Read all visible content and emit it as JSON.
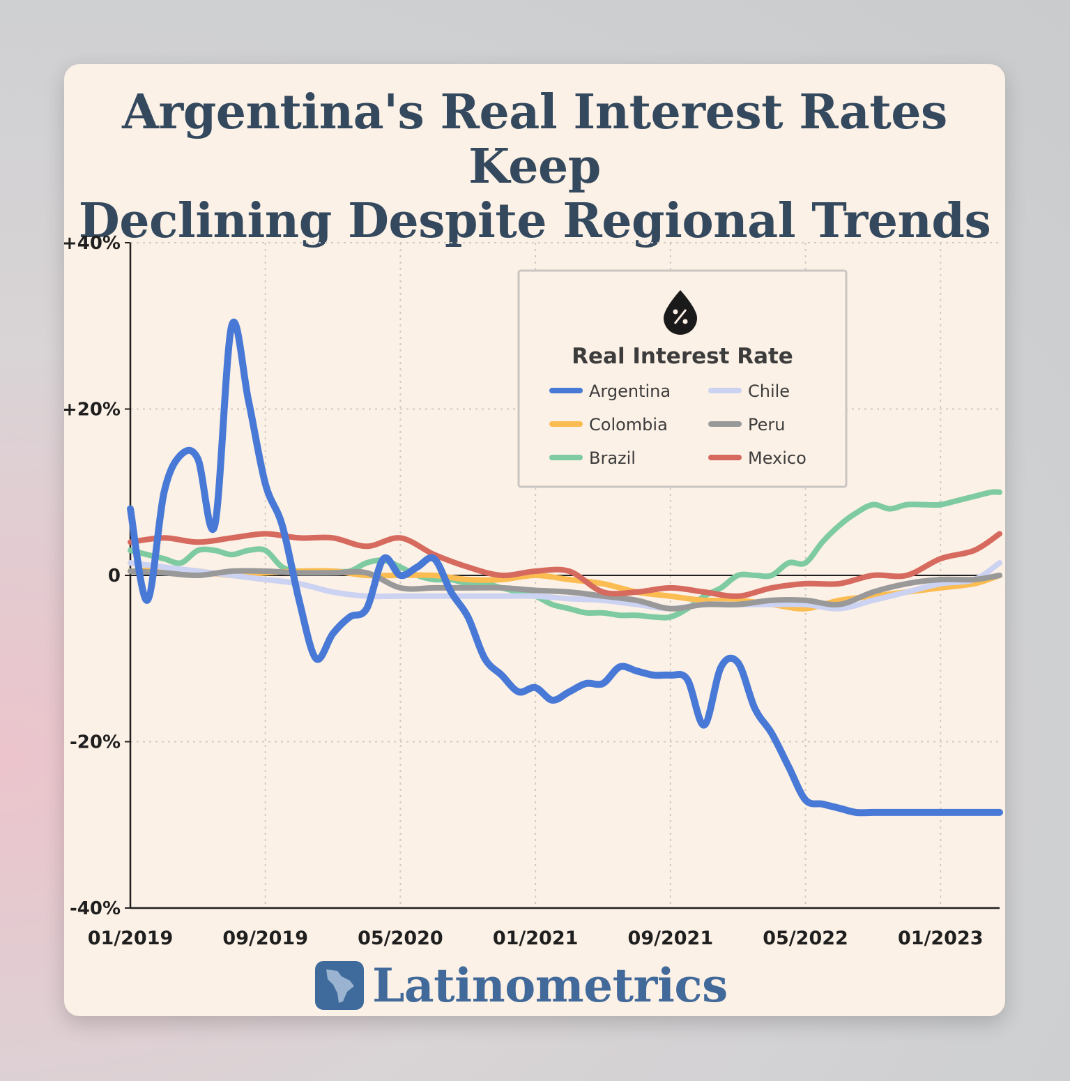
{
  "title": {
    "line1": "Argentina's Real Interest Rates Keep",
    "line2": "Declining Despite Regional Trends"
  },
  "brand": {
    "name": "Latinometrics",
    "icon": "latin-america-map-icon"
  },
  "chart_data": {
    "type": "line",
    "legend_title": "Real Interest Rate",
    "legend_icon": "percent-drop-icon",
    "legend_position": "top-right",
    "grid": true,
    "x_ticks": [
      "01/2019",
      "09/2019",
      "05/2020",
      "01/2021",
      "09/2021",
      "05/2022",
      "01/2023"
    ],
    "x_range_months": [
      0,
      51.5
    ],
    "y_ticks": [
      {
        "value": 40,
        "label": "+40%"
      },
      {
        "value": 20,
        "label": "+20%"
      },
      {
        "value": 0,
        "label": "0"
      },
      {
        "value": -20,
        "label": "-20%"
      },
      {
        "value": -40,
        "label": "-40%"
      }
    ],
    "ylim": [
      -40,
      40
    ],
    "x_note": "x values are months since 01/2019",
    "series": [
      {
        "name": "Brazil",
        "color": "#7ecba1",
        "x": [
          0,
          1,
          2,
          3,
          4,
          5,
          6,
          7,
          8,
          9,
          10,
          11,
          12,
          13,
          14,
          15,
          16,
          17,
          18,
          19,
          20,
          21,
          22,
          23,
          24,
          25,
          26,
          27,
          28,
          29,
          30,
          31,
          32,
          33,
          34,
          35,
          36,
          37,
          38,
          39,
          40,
          41,
          42,
          43,
          44,
          45,
          46,
          47,
          48,
          49,
          50,
          51,
          51.5
        ],
        "y": [
          3,
          2.5,
          2,
          1.5,
          3,
          3,
          2.5,
          3,
          3,
          1,
          0.5,
          0.5,
          0.5,
          0.5,
          1.5,
          1.8,
          1,
          0,
          -0.5,
          -0.5,
          -1,
          -1,
          -1.5,
          -2,
          -2.5,
          -3.5,
          -4,
          -4.5,
          -4.5,
          -4.8,
          -4.8,
          -5,
          -5,
          -4,
          -2.5,
          -1.5,
          0,
          0,
          0,
          1.5,
          1.5,
          4,
          6,
          7.5,
          8.5,
          8,
          8.5,
          8.5,
          8.5,
          9,
          9.5,
          10,
          10
        ]
      },
      {
        "name": "Colombia",
        "color": "#fbbc52",
        "x": [
          0,
          2,
          4,
          6,
          8,
          10,
          12,
          14,
          16,
          18,
          20,
          22,
          24,
          26,
          28,
          30,
          32,
          34,
          36,
          38,
          40,
          42,
          44,
          46,
          48,
          50,
          51.5
        ],
        "y": [
          0.5,
          0.7,
          0.5,
          0,
          0.3,
          0.5,
          0.5,
          0,
          0,
          0,
          -0.5,
          -0.5,
          0,
          -0.5,
          -1,
          -2,
          -2.5,
          -3,
          -3,
          -3.5,
          -4,
          -3,
          -2.5,
          -2,
          -1.5,
          -1,
          0
        ]
      },
      {
        "name": "Chile",
        "color": "#ccd2f2",
        "x": [
          0,
          2,
          4,
          6,
          8,
          10,
          12,
          14,
          16,
          18,
          20,
          22,
          24,
          26,
          28,
          30,
          32,
          34,
          36,
          38,
          40,
          42,
          44,
          46,
          48,
          50,
          51.5
        ],
        "y": [
          1.5,
          1,
          0.5,
          0,
          -0.5,
          -1,
          -2,
          -2.5,
          -2.5,
          -2.5,
          -2.5,
          -2.5,
          -2.5,
          -2.8,
          -3,
          -3.5,
          -4,
          -3.5,
          -3.5,
          -3.5,
          -3.5,
          -4,
          -3,
          -2,
          -1,
          -0.5,
          1.5
        ]
      },
      {
        "name": "Peru",
        "color": "#999999",
        "x": [
          0,
          2,
          4,
          6,
          8,
          10,
          12,
          14,
          16,
          18,
          20,
          22,
          24,
          26,
          28,
          30,
          32,
          34,
          36,
          38,
          40,
          42,
          44,
          46,
          48,
          50,
          51.5
        ],
        "y": [
          0.5,
          0.3,
          0,
          0.5,
          0.5,
          0.3,
          0.3,
          0.3,
          -1.5,
          -1.5,
          -1.5,
          -1.5,
          -1.8,
          -2,
          -2.5,
          -3,
          -4,
          -3.5,
          -3.5,
          -3,
          -3,
          -3.5,
          -2,
          -1,
          -0.5,
          -0.5,
          0
        ]
      },
      {
        "name": "Mexico",
        "color": "#d66a5e",
        "x": [
          0,
          2,
          4,
          6,
          8,
          10,
          12,
          14,
          16,
          18,
          20,
          22,
          24,
          26,
          28,
          30,
          32,
          34,
          36,
          38,
          40,
          42,
          44,
          46,
          48,
          50,
          51.5
        ],
        "y": [
          4,
          4.5,
          4,
          4.5,
          5,
          4.5,
          4.5,
          3.5,
          4.5,
          2.5,
          1,
          0,
          0.5,
          0.5,
          -2,
          -2,
          -1.5,
          -2,
          -2.5,
          -1.5,
          -1,
          -1,
          0,
          0,
          2,
          3,
          5
        ]
      },
      {
        "name": "Argentina",
        "color": "#4879d6",
        "x": [
          0,
          1,
          2,
          3,
          4,
          5,
          6,
          7,
          8,
          9,
          10,
          11,
          12,
          13,
          14,
          15,
          16,
          17,
          18,
          19,
          20,
          21,
          22,
          23,
          24,
          25,
          26,
          27,
          28,
          29,
          30,
          31,
          32,
          33,
          34,
          35,
          36,
          37,
          38,
          39,
          40,
          41,
          42,
          43,
          44,
          45,
          46,
          47,
          48,
          49,
          50,
          51,
          51.5
        ],
        "y": [
          8,
          -3,
          10,
          14.5,
          14,
          6,
          30,
          21,
          11,
          6,
          -3,
          -10,
          -7,
          -5,
          -4,
          2,
          0,
          1,
          2,
          -2,
          -5,
          -10,
          -12,
          -14,
          -13.5,
          -15,
          -14,
          -13,
          -13,
          -11,
          -11.5,
          -12,
          -12,
          -12.5,
          -18,
          -11,
          -10.5,
          -16,
          -19,
          -23,
          -27,
          -27.5,
          -28,
          -28.5,
          -28.5,
          -28.5,
          -28.5,
          -28.5,
          -28.5,
          -28.5,
          -28.5,
          -28.5,
          -28.5
        ]
      }
    ]
  }
}
